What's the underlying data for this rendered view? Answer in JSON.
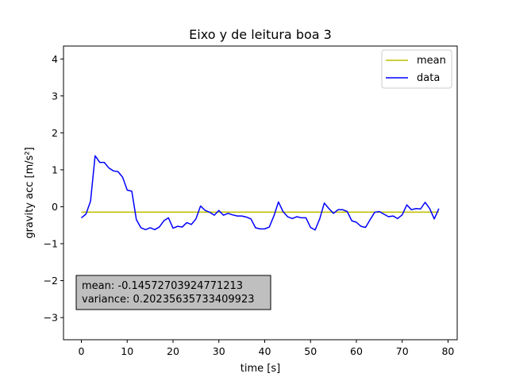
{
  "chart_data": {
    "type": "line",
    "title": "Eixo y de leitura boa 3",
    "xlabel": "time [s]",
    "ylabel": "gravity acc [m/s²]",
    "xlim": [
      -3.9,
      82
    ],
    "ylim": [
      -3.6,
      4.35
    ],
    "xticks": [
      0,
      10,
      20,
      30,
      40,
      50,
      60,
      70,
      80
    ],
    "yticks": [
      -3,
      -2,
      -1,
      0,
      1,
      2,
      3,
      4
    ],
    "xtick_labels": [
      "0",
      "10",
      "20",
      "30",
      "40",
      "50",
      "60",
      "70",
      "80"
    ],
    "ytick_labels": [
      "−3",
      "−2",
      "−1",
      "0",
      "1",
      "2",
      "3",
      "4"
    ],
    "grid": false,
    "legend_position": "top-right",
    "legend": [
      "mean",
      "data"
    ],
    "series": [
      {
        "name": "mean",
        "color": "#bfbf00",
        "x": [
          0,
          78
        ],
        "values": [
          -0.14572703924771213,
          -0.14572703924771213
        ]
      },
      {
        "name": "data",
        "color": "#0000ff",
        "x": [
          0,
          1,
          2,
          3,
          4,
          5,
          6,
          7,
          8,
          9,
          10,
          11,
          12,
          13,
          14,
          15,
          16,
          17,
          18,
          19,
          20,
          21,
          22,
          23,
          24,
          25,
          26,
          27,
          28,
          29,
          30,
          31,
          32,
          33,
          34,
          35,
          36,
          37,
          38,
          39,
          40,
          41,
          42,
          43,
          44,
          45,
          46,
          47,
          48,
          49,
          50,
          51,
          52,
          53,
          54,
          55,
          56,
          57,
          58,
          59,
          60,
          61,
          62,
          63,
          64,
          65,
          66,
          67,
          68,
          69,
          70,
          71,
          72,
          73,
          74,
          75,
          76,
          77,
          78
        ],
        "values": [
          -0.3,
          -0.2,
          0.15,
          1.38,
          1.2,
          1.2,
          1.05,
          0.97,
          0.95,
          0.8,
          0.45,
          0.42,
          -0.35,
          -0.57,
          -0.62,
          -0.57,
          -0.62,
          -0.55,
          -0.38,
          -0.3,
          -0.58,
          -0.53,
          -0.55,
          -0.43,
          -0.48,
          -0.33,
          0.02,
          -0.1,
          -0.15,
          -0.23,
          -0.1,
          -0.23,
          -0.18,
          -0.22,
          -0.25,
          -0.25,
          -0.28,
          -0.33,
          -0.57,
          -0.6,
          -0.6,
          -0.55,
          -0.25,
          0.13,
          -0.13,
          -0.27,
          -0.32,
          -0.27,
          -0.3,
          -0.3,
          -0.56,
          -0.63,
          -0.33,
          0.1,
          -0.05,
          -0.18,
          -0.08,
          -0.08,
          -0.13,
          -0.38,
          -0.42,
          -0.53,
          -0.56,
          -0.35,
          -0.15,
          -0.13,
          -0.2,
          -0.27,
          -0.25,
          -0.32,
          -0.22,
          0.05,
          -0.08,
          -0.05,
          -0.06,
          0.12,
          -0.05,
          -0.33,
          -0.05
        ]
      }
    ],
    "annotation": {
      "lines": [
        "mean: -0.14572703924771213",
        "variance: 0.20235635733409923"
      ],
      "bg_color": "#bfbfbf"
    }
  }
}
